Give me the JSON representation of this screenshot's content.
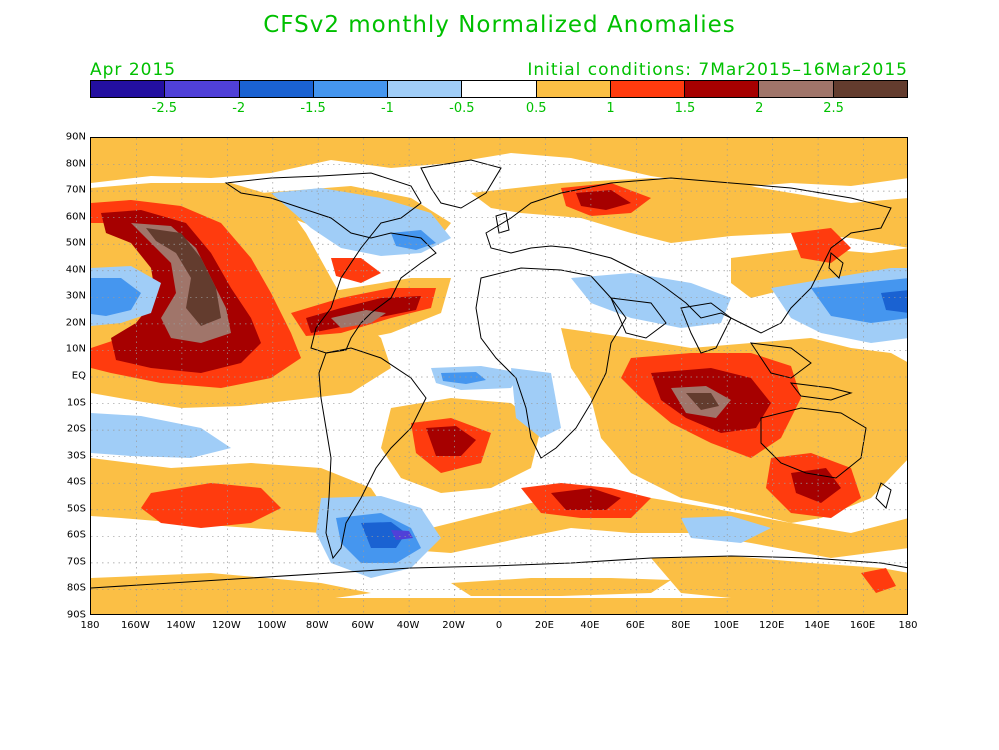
{
  "title": "CFSv2 monthly Normalized Anomalies",
  "forecast_month": "Apr 2015",
  "initial_conditions": "Initial conditions: 7Mar2015–16Mar2015",
  "colorbar": {
    "colors": [
      "#230fa0",
      "#5040d8",
      "#1a62d2",
      "#4596ef",
      "#a0cdf7",
      "#ffffff",
      "#fbbf45",
      "#ff3b0e",
      "#a60000",
      "#a0756a",
      "#633c2e"
    ],
    "labels": [
      "-2.5",
      "-2",
      "-1.5",
      "-1",
      "-0.5",
      "0.5",
      "1",
      "1.5",
      "2",
      "2.5"
    ]
  },
  "lat_labels": [
    "90N",
    "80N",
    "70N",
    "60N",
    "50N",
    "40N",
    "30N",
    "20N",
    "10N",
    "EQ",
    "10S",
    "20S",
    "30S",
    "40S",
    "50S",
    "60S",
    "70S",
    "80S",
    "90S"
  ],
  "lon_labels": [
    "180",
    "160W",
    "140W",
    "120W",
    "100W",
    "80W",
    "60W",
    "40W",
    "20W",
    "0",
    "20E",
    "40E",
    "60E",
    "80E",
    "100E",
    "120E",
    "140E",
    "160E",
    "180"
  ]
}
